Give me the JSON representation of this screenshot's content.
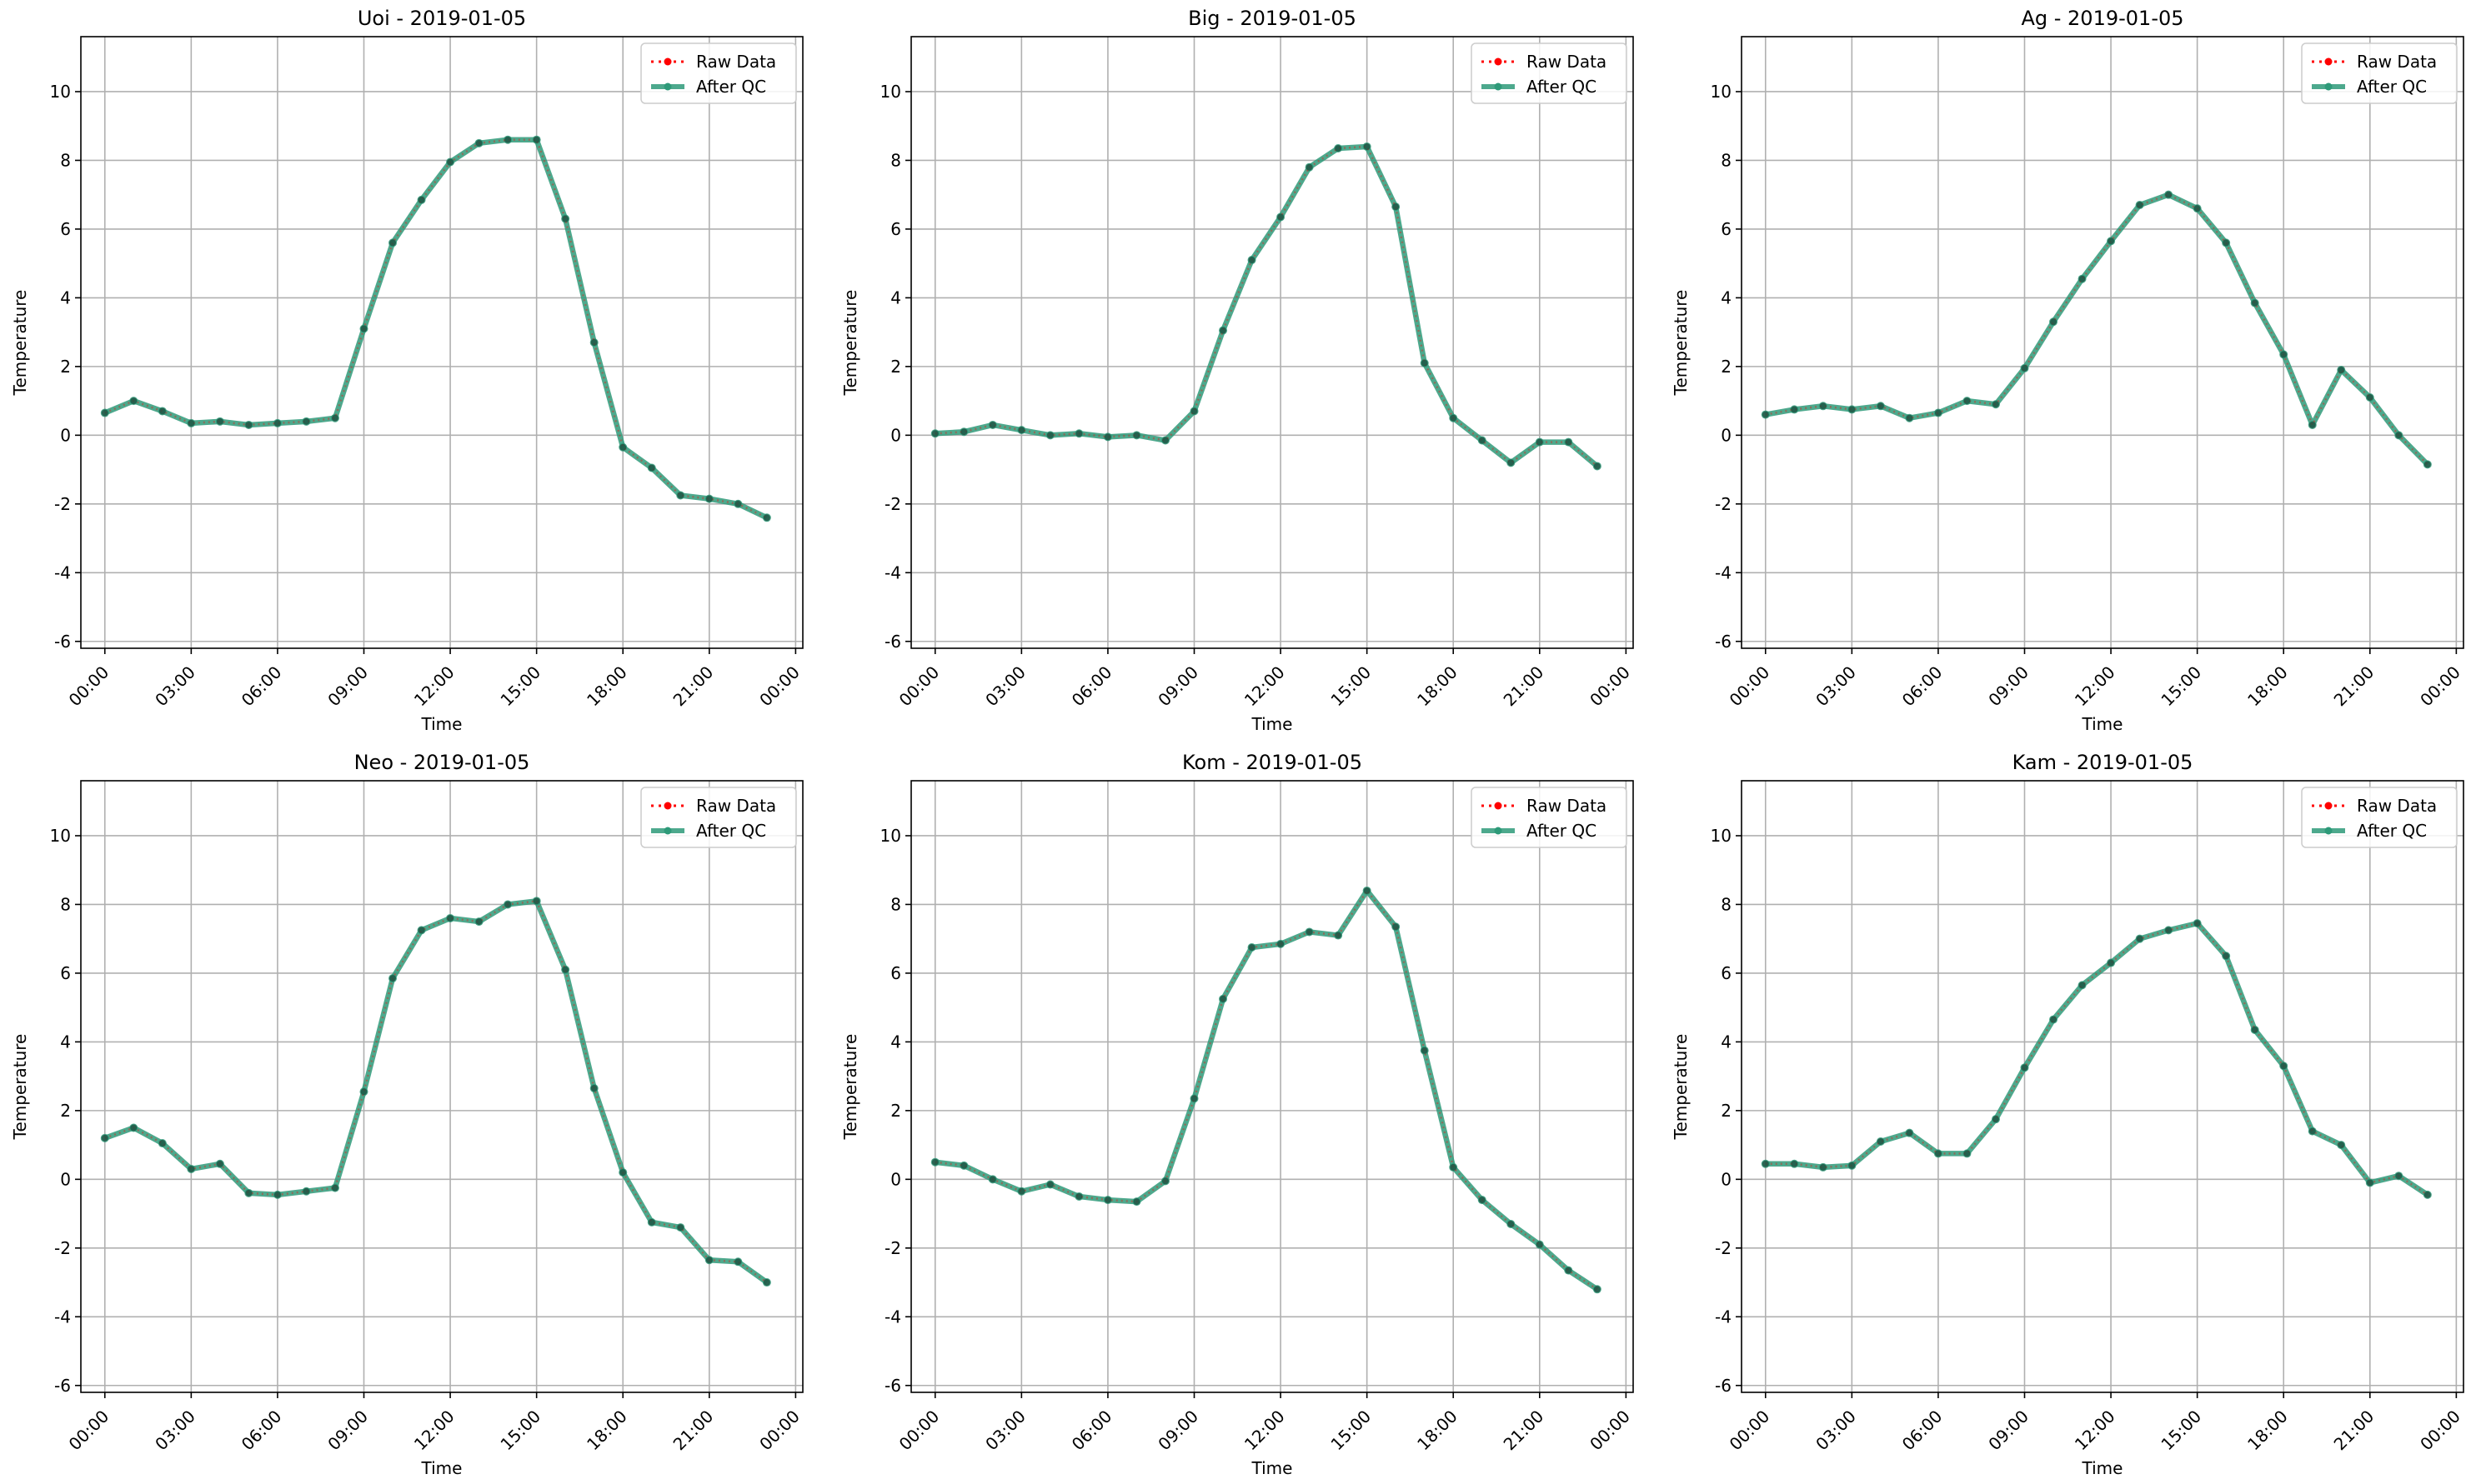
{
  "chart_data": [
    {
      "type": "line",
      "title": "Uoi - 2019-01-05",
      "xlabel": "Time",
      "ylabel": "Temperature",
      "x": [
        "00:00",
        "01:00",
        "02:00",
        "03:00",
        "04:00",
        "05:00",
        "06:00",
        "07:00",
        "08:00",
        "09:00",
        "10:00",
        "11:00",
        "12:00",
        "13:00",
        "14:00",
        "15:00",
        "16:00",
        "17:00",
        "18:00",
        "19:00",
        "20:00",
        "21:00",
        "22:00",
        "23:00"
      ],
      "xticks": [
        "00:00",
        "03:00",
        "06:00",
        "09:00",
        "12:00",
        "15:00",
        "18:00",
        "21:00",
        "00:00"
      ],
      "xlim": [
        "2019-01-04T23:10",
        "2019-01-06T00:15"
      ],
      "yticks": [
        -6,
        -4,
        -2,
        0,
        2,
        4,
        6,
        8,
        10
      ],
      "ylim": [
        -6.2,
        11.6
      ],
      "grid": true,
      "legend_position": "top-right",
      "series": [
        {
          "name": "Raw Data",
          "color": "#ff0000",
          "style": "dotted",
          "values": [
            0.65,
            1.0,
            0.7,
            0.35,
            0.4,
            0.3,
            0.35,
            0.4,
            0.5,
            3.1,
            5.6,
            6.85,
            7.95,
            8.5,
            8.6,
            8.6,
            6.3,
            2.7,
            -0.35,
            -0.95,
            -1.75,
            -1.85,
            -2.0,
            -2.4
          ]
        },
        {
          "name": "After QC",
          "color": "#2e9a79",
          "style": "solid",
          "values": [
            0.65,
            1.0,
            0.7,
            0.35,
            0.4,
            0.3,
            0.35,
            0.4,
            0.5,
            3.1,
            5.6,
            6.85,
            7.95,
            8.5,
            8.6,
            8.6,
            6.3,
            2.7,
            -0.35,
            -0.95,
            -1.75,
            -1.85,
            -2.0,
            -2.4
          ]
        }
      ]
    },
    {
      "type": "line",
      "title": "Big - 2019-01-05",
      "xlabel": "Time",
      "ylabel": "Temperature",
      "x": [
        "00:00",
        "01:00",
        "02:00",
        "03:00",
        "04:00",
        "05:00",
        "06:00",
        "07:00",
        "08:00",
        "09:00",
        "10:00",
        "11:00",
        "12:00",
        "13:00",
        "14:00",
        "15:00",
        "16:00",
        "17:00",
        "18:00",
        "19:00",
        "20:00",
        "21:00",
        "22:00",
        "23:00"
      ],
      "xticks": [
        "00:00",
        "03:00",
        "06:00",
        "09:00",
        "12:00",
        "15:00",
        "18:00",
        "21:00",
        "00:00"
      ],
      "xlim": [
        "2019-01-04T23:10",
        "2019-01-06T00:15"
      ],
      "yticks": [
        -6,
        -4,
        -2,
        0,
        2,
        4,
        6,
        8,
        10
      ],
      "ylim": [
        -6.2,
        11.6
      ],
      "grid": true,
      "legend_position": "top-right",
      "series": [
        {
          "name": "Raw Data",
          "color": "#ff0000",
          "style": "dotted",
          "values": [
            0.05,
            0.1,
            0.3,
            0.15,
            0.0,
            0.05,
            -0.05,
            0.0,
            -0.15,
            0.7,
            3.05,
            5.1,
            6.35,
            7.8,
            8.35,
            8.4,
            6.65,
            2.1,
            0.5,
            -0.15,
            -0.8,
            -0.2,
            -0.2,
            -0.9
          ]
        },
        {
          "name": "After QC",
          "color": "#2e9a79",
          "style": "solid",
          "values": [
            0.05,
            0.1,
            0.3,
            0.15,
            0.0,
            0.05,
            -0.05,
            0.0,
            -0.15,
            0.7,
            3.05,
            5.1,
            6.35,
            7.8,
            8.35,
            8.4,
            6.65,
            2.1,
            0.5,
            -0.15,
            -0.8,
            -0.2,
            -0.2,
            -0.9
          ]
        }
      ]
    },
    {
      "type": "line",
      "title": "Ag - 2019-01-05",
      "xlabel": "Time",
      "ylabel": "Temperature",
      "x": [
        "00:00",
        "01:00",
        "02:00",
        "03:00",
        "04:00",
        "05:00",
        "06:00",
        "07:00",
        "08:00",
        "09:00",
        "10:00",
        "11:00",
        "12:00",
        "13:00",
        "14:00",
        "15:00",
        "16:00",
        "17:00",
        "18:00",
        "19:00",
        "20:00",
        "21:00",
        "22:00",
        "23:00"
      ],
      "xticks": [
        "00:00",
        "03:00",
        "06:00",
        "09:00",
        "12:00",
        "15:00",
        "18:00",
        "21:00",
        "00:00"
      ],
      "xlim": [
        "2019-01-04T23:10",
        "2019-01-06T00:15"
      ],
      "yticks": [
        -6,
        -4,
        -2,
        0,
        2,
        4,
        6,
        8,
        10
      ],
      "ylim": [
        -6.2,
        11.6
      ],
      "grid": true,
      "legend_position": "top-right",
      "series": [
        {
          "name": "Raw Data",
          "color": "#ff0000",
          "style": "dotted",
          "values": [
            0.6,
            0.75,
            0.85,
            0.75,
            0.85,
            0.5,
            0.65,
            1.0,
            0.9,
            1.95,
            3.3,
            4.55,
            5.65,
            6.7,
            7.0,
            6.6,
            5.6,
            3.85,
            2.35,
            0.3,
            1.9,
            1.1,
            0.0,
            -0.85
          ]
        },
        {
          "name": "After QC",
          "color": "#2e9a79",
          "style": "solid",
          "values": [
            0.6,
            0.75,
            0.85,
            0.75,
            0.85,
            0.5,
            0.65,
            1.0,
            0.9,
            1.95,
            3.3,
            4.55,
            5.65,
            6.7,
            7.0,
            6.6,
            5.6,
            3.85,
            2.35,
            0.3,
            1.9,
            1.1,
            0.0,
            -0.85
          ]
        }
      ]
    },
    {
      "type": "line",
      "title": "Neo - 2019-01-05",
      "xlabel": "Time",
      "ylabel": "Temperature",
      "x": [
        "00:00",
        "01:00",
        "02:00",
        "03:00",
        "04:00",
        "05:00",
        "06:00",
        "07:00",
        "08:00",
        "09:00",
        "10:00",
        "11:00",
        "12:00",
        "13:00",
        "14:00",
        "15:00",
        "16:00",
        "17:00",
        "18:00",
        "19:00",
        "20:00",
        "21:00",
        "22:00",
        "23:00"
      ],
      "xticks": [
        "00:00",
        "03:00",
        "06:00",
        "09:00",
        "12:00",
        "15:00",
        "18:00",
        "21:00",
        "00:00"
      ],
      "xlim": [
        "2019-01-04T23:10",
        "2019-01-06T00:15"
      ],
      "yticks": [
        -6,
        -4,
        -2,
        0,
        2,
        4,
        6,
        8,
        10
      ],
      "ylim": [
        -6.2,
        11.6
      ],
      "grid": true,
      "legend_position": "top-right",
      "series": [
        {
          "name": "Raw Data",
          "color": "#ff0000",
          "style": "dotted",
          "values": [
            1.2,
            1.5,
            1.05,
            0.3,
            0.45,
            -0.4,
            -0.45,
            -0.35,
            -0.25,
            2.55,
            5.85,
            7.25,
            7.6,
            7.5,
            8.0,
            8.1,
            6.1,
            2.65,
            0.2,
            -1.25,
            -1.4,
            -2.35,
            -2.4,
            -3.0
          ]
        },
        {
          "name": "After QC",
          "color": "#2e9a79",
          "style": "solid",
          "values": [
            1.2,
            1.5,
            1.05,
            0.3,
            0.45,
            -0.4,
            -0.45,
            -0.35,
            -0.25,
            2.55,
            5.85,
            7.25,
            7.6,
            7.5,
            8.0,
            8.1,
            6.1,
            2.65,
            0.2,
            -1.25,
            -1.4,
            -2.35,
            -2.4,
            -3.0
          ]
        }
      ]
    },
    {
      "type": "line",
      "title": "Kom - 2019-01-05",
      "xlabel": "Time",
      "ylabel": "Temperature",
      "x": [
        "00:00",
        "01:00",
        "02:00",
        "03:00",
        "04:00",
        "05:00",
        "06:00",
        "07:00",
        "08:00",
        "09:00",
        "10:00",
        "11:00",
        "12:00",
        "13:00",
        "14:00",
        "15:00",
        "16:00",
        "17:00",
        "18:00",
        "19:00",
        "20:00",
        "21:00",
        "22:00",
        "23:00"
      ],
      "xticks": [
        "00:00",
        "03:00",
        "06:00",
        "09:00",
        "12:00",
        "15:00",
        "18:00",
        "21:00",
        "00:00"
      ],
      "xlim": [
        "2019-01-04T23:10",
        "2019-01-06T00:15"
      ],
      "yticks": [
        -6,
        -4,
        -2,
        0,
        2,
        4,
        6,
        8,
        10
      ],
      "ylim": [
        -6.2,
        11.6
      ],
      "grid": true,
      "legend_position": "top-right",
      "series": [
        {
          "name": "Raw Data",
          "color": "#ff0000",
          "style": "dotted",
          "values": [
            0.5,
            0.4,
            0.0,
            -0.35,
            -0.15,
            -0.5,
            -0.6,
            -0.65,
            -0.05,
            2.35,
            5.25,
            6.75,
            6.85,
            7.2,
            7.1,
            8.4,
            7.35,
            3.75,
            0.35,
            -0.6,
            -1.3,
            -1.9,
            -2.65,
            -3.2
          ]
        },
        {
          "name": "After QC",
          "color": "#2e9a79",
          "style": "solid",
          "values": [
            0.5,
            0.4,
            0.0,
            -0.35,
            -0.15,
            -0.5,
            -0.6,
            -0.65,
            -0.05,
            2.35,
            5.25,
            6.75,
            6.85,
            7.2,
            7.1,
            8.4,
            7.35,
            3.75,
            0.35,
            -0.6,
            -1.3,
            -1.9,
            -2.65,
            -3.2
          ]
        }
      ]
    },
    {
      "type": "line",
      "title": "Kam - 2019-01-05",
      "xlabel": "Time",
      "ylabel": "Temperature",
      "x": [
        "00:00",
        "01:00",
        "02:00",
        "03:00",
        "04:00",
        "05:00",
        "06:00",
        "07:00",
        "08:00",
        "09:00",
        "10:00",
        "11:00",
        "12:00",
        "13:00",
        "14:00",
        "15:00",
        "16:00",
        "17:00",
        "18:00",
        "19:00",
        "20:00",
        "21:00",
        "22:00",
        "23:00"
      ],
      "xticks": [
        "00:00",
        "03:00",
        "06:00",
        "09:00",
        "12:00",
        "15:00",
        "18:00",
        "21:00",
        "00:00"
      ],
      "xlim": [
        "2019-01-04T23:10",
        "2019-01-06T00:15"
      ],
      "yticks": [
        -6,
        -4,
        -2,
        0,
        2,
        4,
        6,
        8,
        10
      ],
      "ylim": [
        -6.2,
        11.6
      ],
      "grid": true,
      "legend_position": "top-right",
      "series": [
        {
          "name": "Raw Data",
          "color": "#ff0000",
          "style": "dotted",
          "values": [
            0.45,
            0.45,
            0.35,
            0.4,
            1.1,
            1.35,
            0.75,
            0.75,
            1.75,
            3.25,
            4.65,
            5.65,
            6.3,
            7.0,
            7.25,
            7.45,
            6.5,
            4.35,
            3.3,
            1.4,
            1.0,
            -0.1,
            0.1,
            -0.45
          ]
        },
        {
          "name": "After QC",
          "color": "#2e9a79",
          "style": "solid",
          "values": [
            0.45,
            0.45,
            0.35,
            0.4,
            1.1,
            1.35,
            0.75,
            0.75,
            1.75,
            3.25,
            4.65,
            5.65,
            6.3,
            7.0,
            7.25,
            7.45,
            6.5,
            4.35,
            3.3,
            1.4,
            1.0,
            -0.1,
            0.1,
            -0.45
          ]
        }
      ]
    }
  ]
}
